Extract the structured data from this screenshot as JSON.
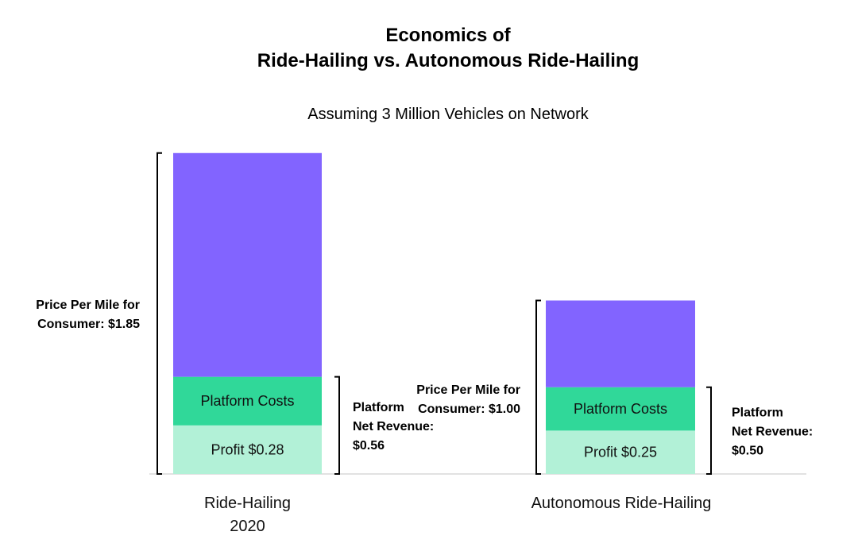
{
  "chart_data": {
    "type": "bar",
    "stacked": true,
    "title_line1": "Economics of",
    "title_line2": "Ride-Hailing vs. Autonomous Ride-Hailing",
    "subtitle": "Assuming 3 Million Vehicles on Network",
    "unit": "$ per mile",
    "colors": {
      "profit": "#b2f1d7",
      "platform_costs": "#30d899",
      "other": "#8264ff"
    },
    "bars": [
      {
        "category_lines": [
          "Ride-Hailing",
          "2020"
        ],
        "total": 1.85,
        "segments": [
          {
            "key": "profit",
            "label": "Profit $0.28",
            "value": 0.28
          },
          {
            "key": "platform_costs",
            "label": "Platform Costs",
            "value": 0.28
          },
          {
            "key": "other",
            "label": "",
            "value": 1.29
          }
        ],
        "price_label_lines": [
          "Price Per Mile for",
          "Consumer: $1.85"
        ],
        "revenue_label_lines": [
          "Platform",
          "Net Revenue:",
          "$0.56"
        ]
      },
      {
        "category_lines": [
          "Autonomous Ride-Hailing"
        ],
        "total": 1.0,
        "segments": [
          {
            "key": "profit",
            "label": "Profit $0.25",
            "value": 0.25
          },
          {
            "key": "platform_costs",
            "label": "Platform Costs",
            "value": 0.25
          },
          {
            "key": "other",
            "label": "",
            "value": 0.5
          }
        ],
        "price_label_lines": [
          "Price Per Mile for",
          "Consumer: $1.00"
        ],
        "revenue_label_lines": [
          "Platform",
          "Net Revenue:",
          "$0.50"
        ]
      }
    ]
  }
}
